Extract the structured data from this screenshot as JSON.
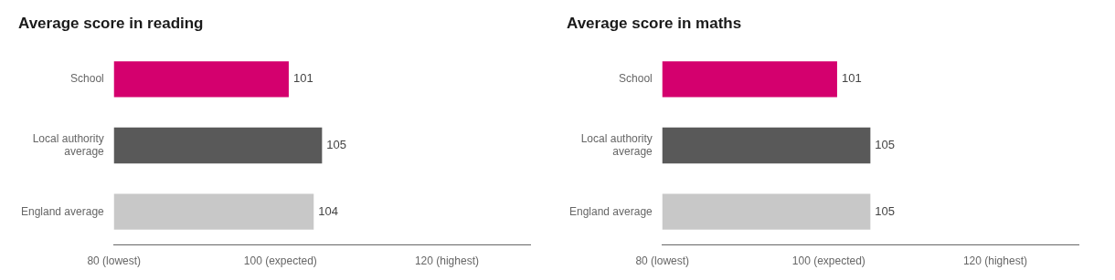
{
  "chart_data": [
    {
      "type": "bar",
      "orientation": "horizontal",
      "title": "Average score in reading",
      "categories": [
        "School",
        "Local authority\naverage",
        "England average"
      ],
      "values": [
        101,
        105,
        104
      ],
      "colors": [
        "#d4006e",
        "#595959",
        "#c8c8c8"
      ],
      "xlim": [
        80,
        130
      ],
      "xticks": [
        {
          "value": 80,
          "label": "80 (lowest)"
        },
        {
          "value": 100,
          "label": "100 (expected)"
        },
        {
          "value": 120,
          "label": "120 (highest)"
        }
      ],
      "data_labels": true,
      "grid": false
    },
    {
      "type": "bar",
      "orientation": "horizontal",
      "title": "Average score in maths",
      "categories": [
        "School",
        "Local authority\naverage",
        "England average"
      ],
      "values": [
        101,
        105,
        105
      ],
      "colors": [
        "#d4006e",
        "#595959",
        "#c8c8c8"
      ],
      "xlim": [
        80,
        130
      ],
      "xticks": [
        {
          "value": 80,
          "label": "80 (lowest)"
        },
        {
          "value": 100,
          "label": "100 (expected)"
        },
        {
          "value": 120,
          "label": "120 (highest)"
        }
      ],
      "data_labels": true,
      "grid": false
    }
  ]
}
